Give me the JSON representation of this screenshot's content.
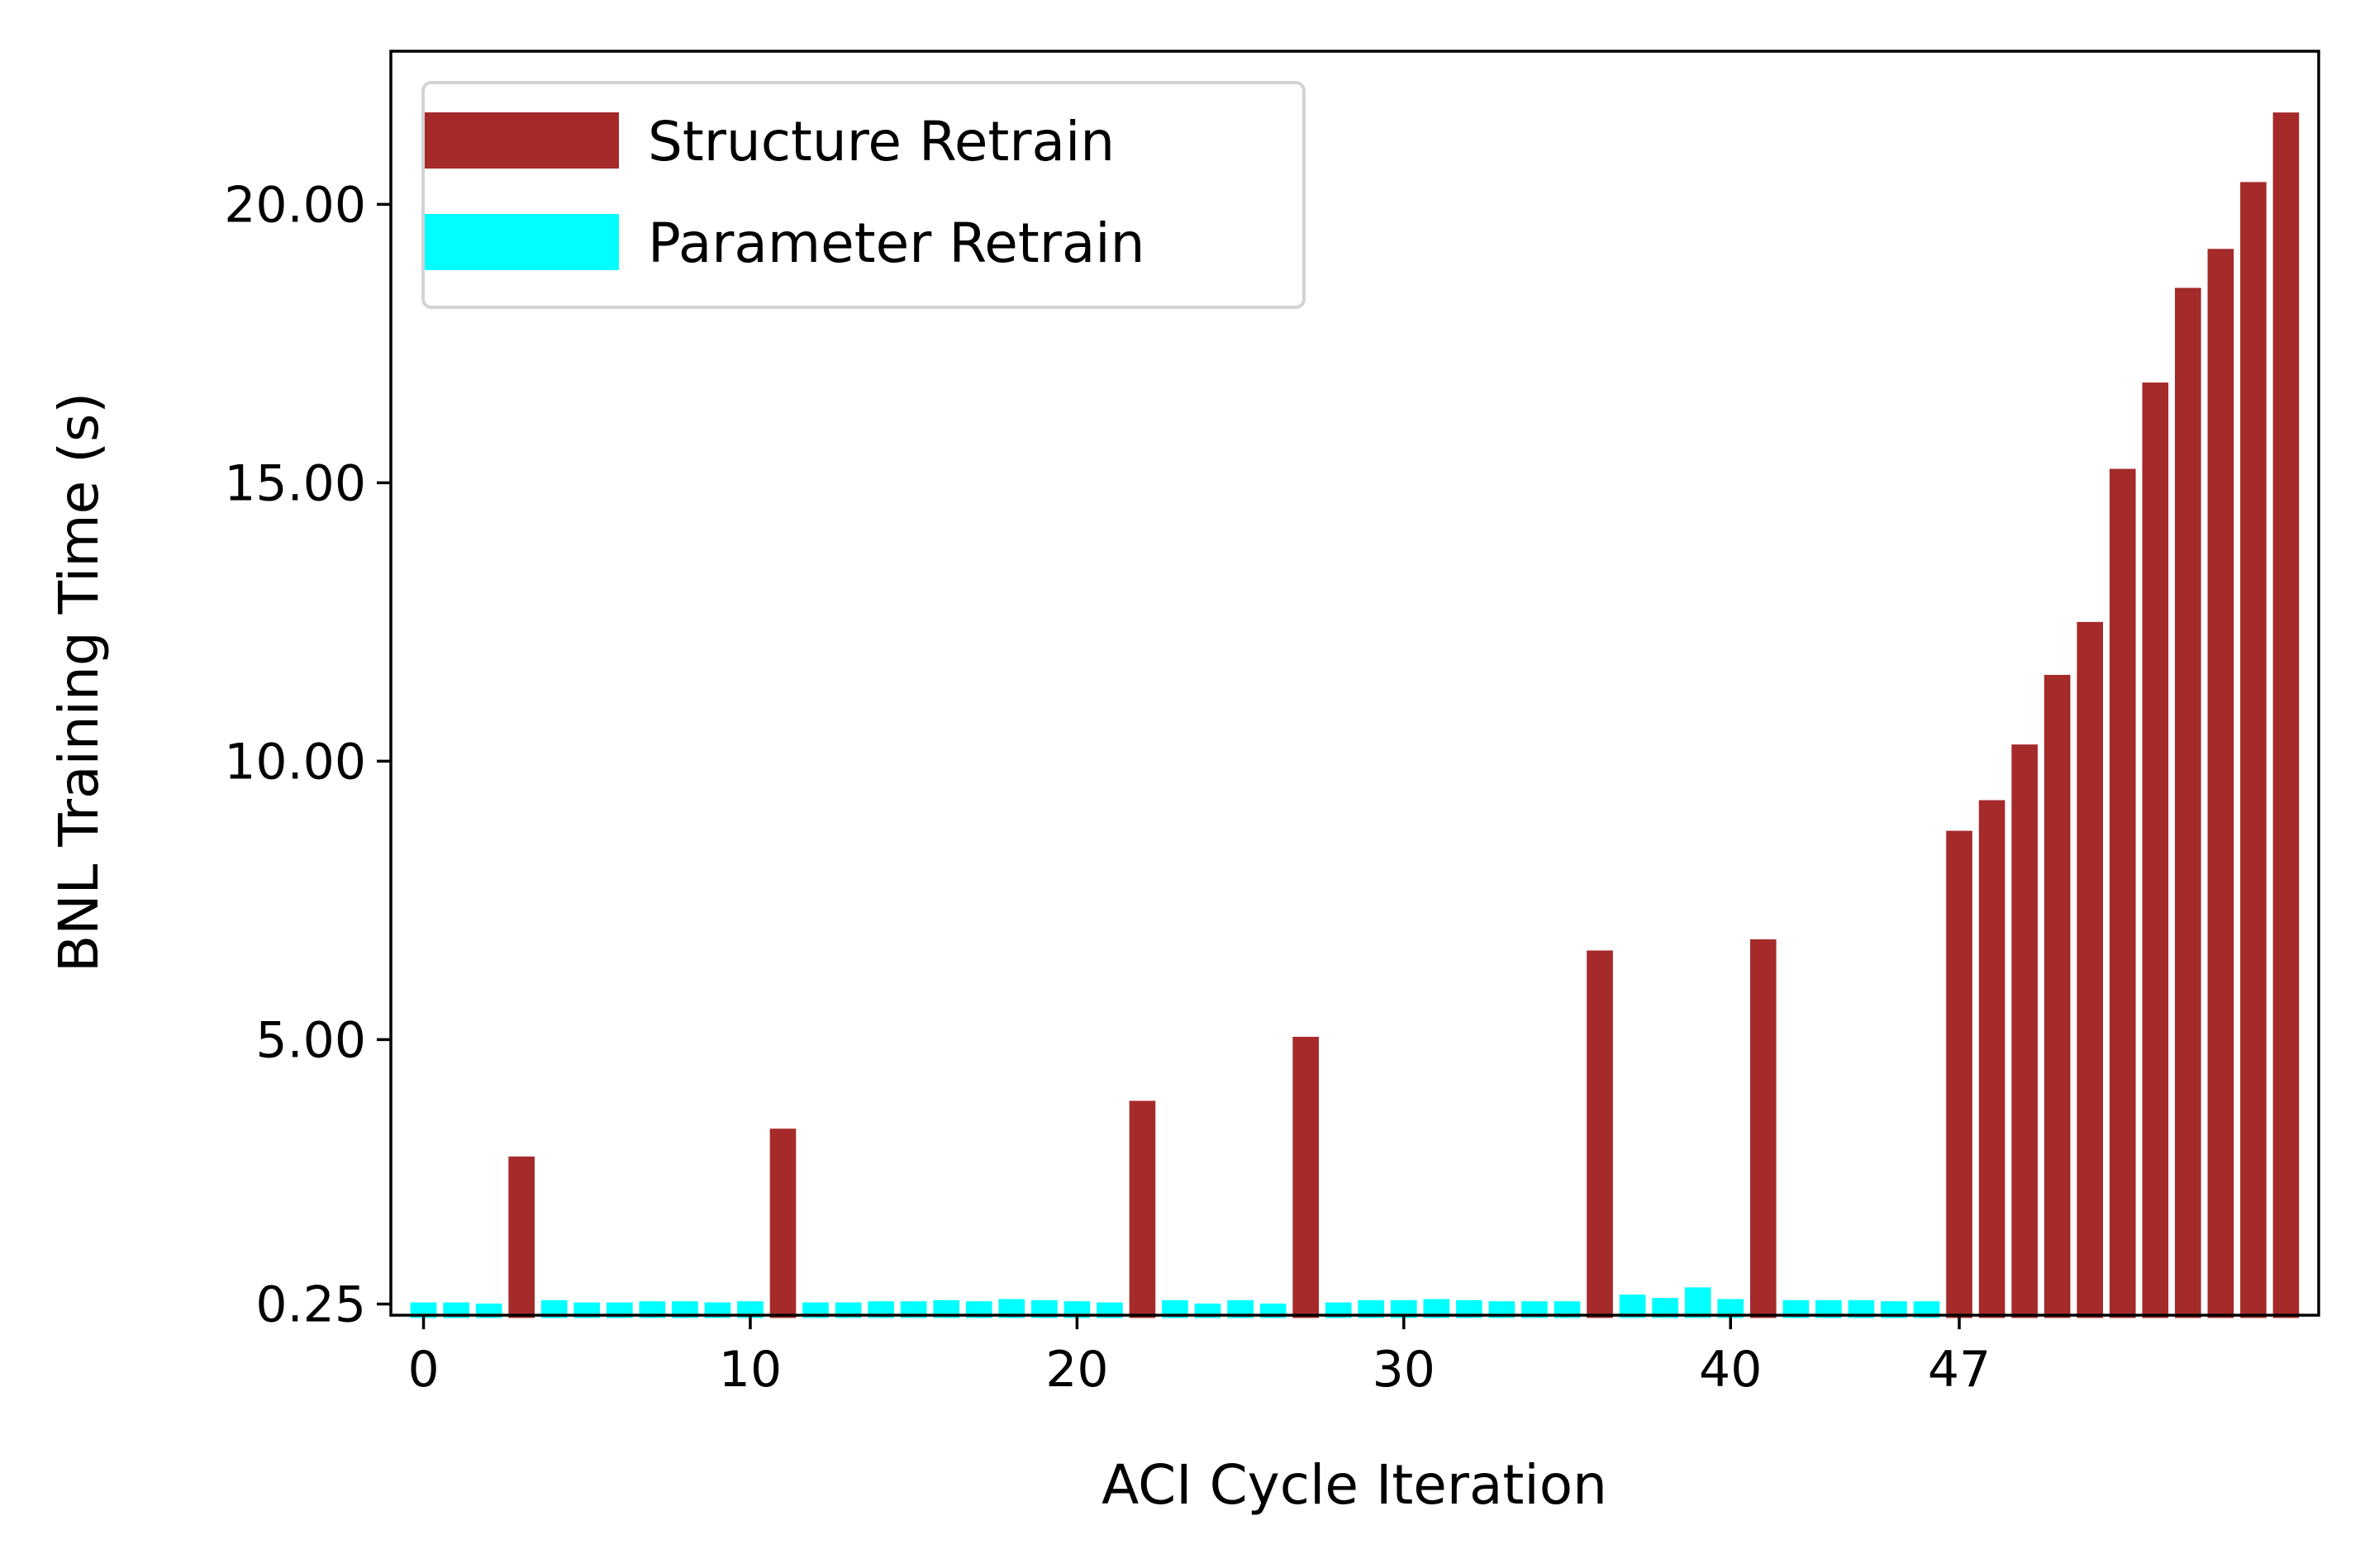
{
  "chart_data": {
    "type": "bar",
    "title": "",
    "xlabel": "ACI Cycle Iteration",
    "ylabel": "BNL Training Time (s)",
    "x_ticks": [
      0,
      10,
      20,
      30,
      40,
      47
    ],
    "y_ticks": [
      {
        "value": 0.25,
        "label": "0.25"
      },
      {
        "value": 5,
        "label": "5.00"
      },
      {
        "value": 10,
        "label": "10.00"
      },
      {
        "value": 15,
        "label": "15.00"
      },
      {
        "value": 20,
        "label": "20.00"
      }
    ],
    "xlim": [
      -1,
      58
    ],
    "ylim": [
      0.05,
      22.75
    ],
    "grid": false,
    "legend_position": "top-left",
    "series": [
      {
        "name": "Structure Retrain",
        "color": "#a52a2a",
        "x": [
          3,
          11,
          22,
          27,
          36,
          41,
          47,
          48,
          49,
          50,
          51,
          52,
          53,
          54,
          55,
          56,
          57
        ],
        "values": [
          2.9,
          3.4,
          3.9,
          5.05,
          6.6,
          6.8,
          8.75,
          9.3,
          10.3,
          11.55,
          12.5,
          15.25,
          16.8,
          18.5,
          19.2,
          20.4,
          21.65
        ]
      },
      {
        "name": "Parameter Retrain",
        "color": "#00ffff",
        "x": [
          0,
          1,
          2,
          4,
          5,
          6,
          7,
          8,
          9,
          10,
          12,
          13,
          14,
          15,
          16,
          17,
          18,
          19,
          20,
          21,
          23,
          24,
          25,
          26,
          28,
          29,
          30,
          31,
          32,
          33,
          34,
          35,
          37,
          38,
          39,
          40,
          42,
          43,
          44,
          45,
          46
        ],
        "values": [
          0.28,
          0.28,
          0.26,
          0.32,
          0.28,
          0.28,
          0.3,
          0.3,
          0.28,
          0.3,
          0.28,
          0.28,
          0.3,
          0.3,
          0.32,
          0.3,
          0.34,
          0.32,
          0.3,
          0.28,
          0.32,
          0.26,
          0.32,
          0.26,
          0.28,
          0.32,
          0.32,
          0.34,
          0.32,
          0.3,
          0.3,
          0.3,
          0.42,
          0.36,
          0.55,
          0.34,
          0.32,
          0.32,
          0.32,
          0.3,
          0.3
        ]
      }
    ]
  }
}
